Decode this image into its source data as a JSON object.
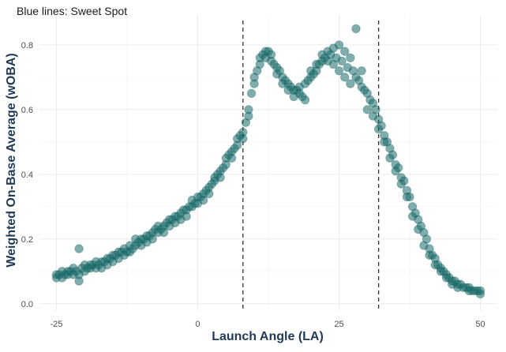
{
  "chart_data": {
    "type": "scatter",
    "title": "Blue lines: Sweet Spot",
    "xlabel": "Launch Angle (LA)",
    "ylabel": "Weighted On-Base Average (wOBA)",
    "xlim": [
      -28,
      53
    ],
    "ylim": [
      -0.02,
      0.89
    ],
    "x_ticks": [
      -25,
      0,
      25,
      50
    ],
    "y_ticks": [
      0.0,
      0.2,
      0.4,
      0.6,
      0.8
    ],
    "x_tick_labels": [
      "-25",
      "0",
      "25",
      "50"
    ],
    "y_tick_labels": [
      "0.0",
      "0.2",
      "0.4",
      "0.6",
      "0.8"
    ],
    "grid": true,
    "reference_lines_x": [
      8,
      32
    ],
    "point_color": "#1a6b69",
    "point_opacity": 0.55,
    "points": [
      [
        -25,
        0.09
      ],
      [
        -25,
        0.08
      ],
      [
        -24.5,
        0.09
      ],
      [
        -24,
        0.1
      ],
      [
        -24,
        0.08
      ],
      [
        -23.5,
        0.09
      ],
      [
        -23,
        0.1
      ],
      [
        -23,
        0.09
      ],
      [
        -22.5,
        0.1
      ],
      [
        -22,
        0.09
      ],
      [
        -22,
        0.11
      ],
      [
        -21.5,
        0.1
      ],
      [
        -21,
        0.09
      ],
      [
        -21,
        0.07
      ],
      [
        -21,
        0.17
      ],
      [
        -20.5,
        0.11
      ],
      [
        -20,
        0.1
      ],
      [
        -20,
        0.12
      ],
      [
        -19.5,
        0.11
      ],
      [
        -19,
        0.11
      ],
      [
        -19,
        0.12
      ],
      [
        -18.5,
        0.12
      ],
      [
        -18,
        0.11
      ],
      [
        -18,
        0.13
      ],
      [
        -17.5,
        0.12
      ],
      [
        -17,
        0.13
      ],
      [
        -17,
        0.11
      ],
      [
        -16.5,
        0.13
      ],
      [
        -16,
        0.14
      ],
      [
        -16,
        0.12
      ],
      [
        -15.5,
        0.14
      ],
      [
        -15,
        0.15
      ],
      [
        -15,
        0.13
      ],
      [
        -14.5,
        0.15
      ],
      [
        -14,
        0.14
      ],
      [
        -14,
        0.16
      ],
      [
        -13.5,
        0.16
      ],
      [
        -13,
        0.15
      ],
      [
        -13,
        0.17
      ],
      [
        -12.5,
        0.16
      ],
      [
        -12,
        0.18
      ],
      [
        -12,
        0.16
      ],
      [
        -11.5,
        0.17
      ],
      [
        -11,
        0.18
      ],
      [
        -11,
        0.2
      ],
      [
        -10.5,
        0.19
      ],
      [
        -10,
        0.2
      ],
      [
        -10,
        0.18
      ],
      [
        -9.5,
        0.2
      ],
      [
        -9,
        0.21
      ],
      [
        -9,
        0.19
      ],
      [
        -8.5,
        0.21
      ],
      [
        -8,
        0.22
      ],
      [
        -8,
        0.2
      ],
      [
        -7.5,
        0.23
      ],
      [
        -7,
        0.22
      ],
      [
        -7,
        0.24
      ],
      [
        -6.5,
        0.23
      ],
      [
        -6,
        0.24
      ],
      [
        -6,
        0.22
      ],
      [
        -5.5,
        0.25
      ],
      [
        -5,
        0.24
      ],
      [
        -5,
        0.26
      ],
      [
        -4.5,
        0.26
      ],
      [
        -4,
        0.27
      ],
      [
        -4,
        0.25
      ],
      [
        -3.5,
        0.27
      ],
      [
        -3,
        0.28
      ],
      [
        -3,
        0.26
      ],
      [
        -2.5,
        0.29
      ],
      [
        -2,
        0.29
      ],
      [
        -2,
        0.27
      ],
      [
        -1.5,
        0.3
      ],
      [
        -1,
        0.3
      ],
      [
        -1,
        0.32
      ],
      [
        -0.5,
        0.31
      ],
      [
        0,
        0.31
      ],
      [
        0,
        0.33
      ],
      [
        0.5,
        0.33
      ],
      [
        1,
        0.34
      ],
      [
        1,
        0.32
      ],
      [
        1.5,
        0.35
      ],
      [
        2,
        0.36
      ],
      [
        2,
        0.34
      ],
      [
        2.5,
        0.37
      ],
      [
        3,
        0.38
      ],
      [
        3,
        0.39
      ],
      [
        3.5,
        0.4
      ],
      [
        4,
        0.41
      ],
      [
        4,
        0.39
      ],
      [
        4.5,
        0.42
      ],
      [
        5,
        0.43
      ],
      [
        5,
        0.45
      ],
      [
        5.5,
        0.46
      ],
      [
        6,
        0.47
      ],
      [
        6,
        0.45
      ],
      [
        6.5,
        0.48
      ],
      [
        7,
        0.49
      ],
      [
        7,
        0.51
      ],
      [
        7.5,
        0.52
      ],
      [
        8,
        0.53
      ],
      [
        8,
        0.51
      ],
      [
        8.5,
        0.56
      ],
      [
        9,
        0.58
      ],
      [
        9,
        0.6
      ],
      [
        9.5,
        0.65
      ],
      [
        10,
        0.68
      ],
      [
        10,
        0.7
      ],
      [
        10.5,
        0.72
      ],
      [
        11,
        0.74
      ],
      [
        11,
        0.76
      ],
      [
        11.5,
        0.77
      ],
      [
        12,
        0.78
      ],
      [
        12,
        0.76
      ],
      [
        12.5,
        0.78
      ],
      [
        13,
        0.77
      ],
      [
        13,
        0.75
      ],
      [
        13.5,
        0.74
      ],
      [
        14,
        0.73
      ],
      [
        14,
        0.71
      ],
      [
        14.5,
        0.72
      ],
      [
        15,
        0.7
      ],
      [
        15,
        0.68
      ],
      [
        15.5,
        0.69
      ],
      [
        16,
        0.68
      ],
      [
        16,
        0.66
      ],
      [
        16.5,
        0.67
      ],
      [
        17,
        0.66
      ],
      [
        17,
        0.64
      ],
      [
        17.5,
        0.66
      ],
      [
        18,
        0.67
      ],
      [
        18,
        0.65
      ],
      [
        18.5,
        0.64
      ],
      [
        19,
        0.63
      ],
      [
        19,
        0.68
      ],
      [
        19.5,
        0.69
      ],
      [
        20,
        0.7
      ],
      [
        20,
        0.72
      ],
      [
        20.5,
        0.71
      ],
      [
        21,
        0.72
      ],
      [
        21,
        0.74
      ],
      [
        21.5,
        0.74
      ],
      [
        22,
        0.75
      ],
      [
        22,
        0.77
      ],
      [
        22.5,
        0.76
      ],
      [
        23,
        0.78
      ],
      [
        23,
        0.75
      ],
      [
        23.5,
        0.77
      ],
      [
        24,
        0.79
      ],
      [
        24,
        0.74
      ],
      [
        24.5,
        0.76
      ],
      [
        25,
        0.8
      ],
      [
        25,
        0.72
      ],
      [
        25.5,
        0.75
      ],
      [
        26,
        0.78
      ],
      [
        26,
        0.7
      ],
      [
        26.5,
        0.73
      ],
      [
        27,
        0.76
      ],
      [
        27,
        0.68
      ],
      [
        27.5,
        0.72
      ],
      [
        28,
        0.85
      ],
      [
        28,
        0.7
      ],
      [
        28.5,
        0.69
      ],
      [
        29,
        0.67
      ],
      [
        29,
        0.72
      ],
      [
        29.5,
        0.66
      ],
      [
        30,
        0.65
      ],
      [
        30,
        0.6
      ],
      [
        30.5,
        0.63
      ],
      [
        31,
        0.62
      ],
      [
        31,
        0.58
      ],
      [
        31.5,
        0.6
      ],
      [
        32,
        0.57
      ],
      [
        32,
        0.54
      ],
      [
        32.5,
        0.55
      ],
      [
        33,
        0.52
      ],
      [
        33,
        0.5
      ],
      [
        33.5,
        0.5
      ],
      [
        34,
        0.48
      ],
      [
        34,
        0.45
      ],
      [
        34.5,
        0.46
      ],
      [
        35,
        0.43
      ],
      [
        35,
        0.41
      ],
      [
        35.5,
        0.42
      ],
      [
        36,
        0.39
      ],
      [
        36,
        0.37
      ],
      [
        36.5,
        0.38
      ],
      [
        37,
        0.35
      ],
      [
        37,
        0.33
      ],
      [
        37.5,
        0.33
      ],
      [
        38,
        0.3
      ],
      [
        38,
        0.27
      ],
      [
        38.5,
        0.28
      ],
      [
        39,
        0.26
      ],
      [
        39,
        0.23
      ],
      [
        39.5,
        0.24
      ],
      [
        40,
        0.22
      ],
      [
        40,
        0.18
      ],
      [
        40.5,
        0.2
      ],
      [
        41,
        0.17
      ],
      [
        41,
        0.15
      ],
      [
        41.5,
        0.15
      ],
      [
        42,
        0.14
      ],
      [
        42,
        0.12
      ],
      [
        42.5,
        0.12
      ],
      [
        43,
        0.11
      ],
      [
        43,
        0.1
      ],
      [
        43.5,
        0.1
      ],
      [
        44,
        0.09
      ],
      [
        44,
        0.08
      ],
      [
        44.5,
        0.08
      ],
      [
        45,
        0.07
      ],
      [
        45,
        0.06
      ],
      [
        45.5,
        0.07
      ],
      [
        46,
        0.06
      ],
      [
        46,
        0.05
      ],
      [
        46.5,
        0.06
      ],
      [
        47,
        0.05
      ],
      [
        47.5,
        0.05
      ],
      [
        48,
        0.05
      ],
      [
        48,
        0.04
      ],
      [
        48.5,
        0.04
      ],
      [
        49,
        0.04
      ],
      [
        49.5,
        0.04
      ],
      [
        50,
        0.04
      ],
      [
        50,
        0.03
      ]
    ]
  }
}
